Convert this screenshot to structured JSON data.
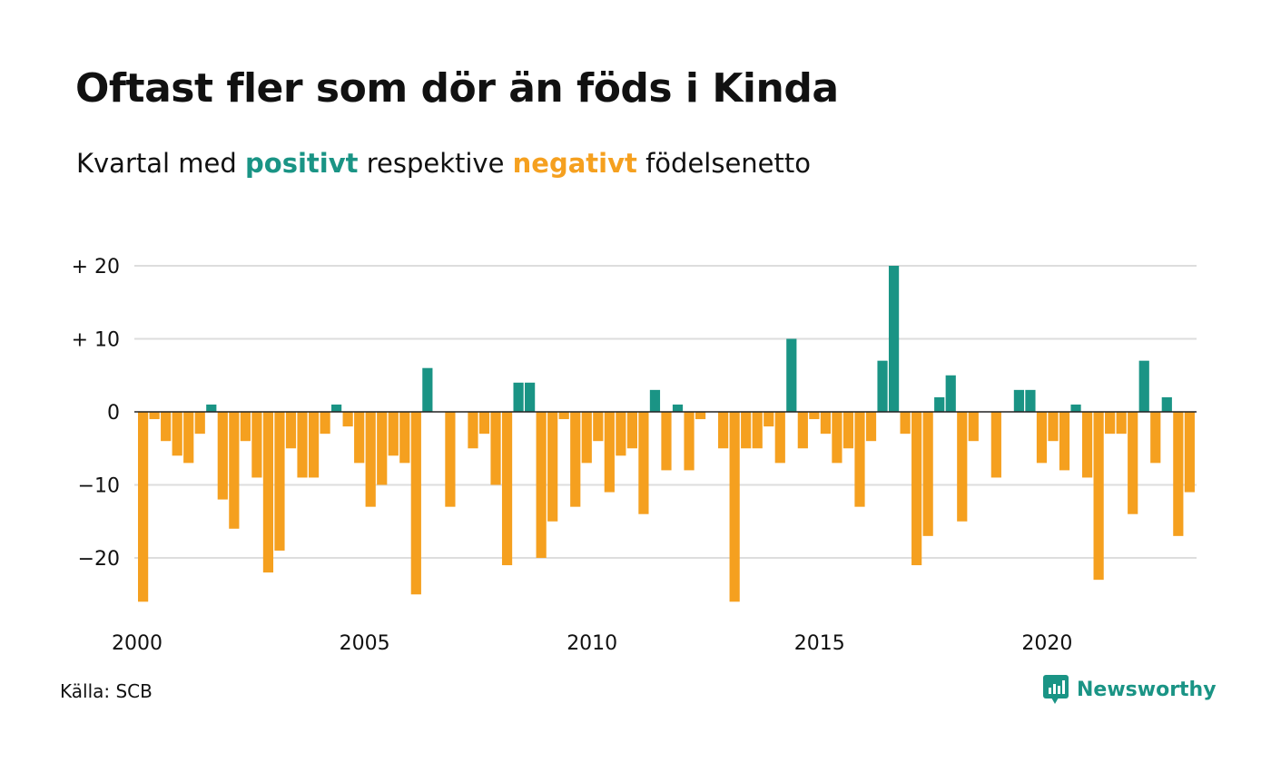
{
  "title": "Oftast fler som dör än föds i Kinda",
  "subtitle": {
    "before": "Kvartal med ",
    "positive": "positivt",
    "middle": " respektive ",
    "negative": "negativt",
    "after": " födelsenetto"
  },
  "colors": {
    "positive": "#1a9485",
    "negative": "#f5a01f",
    "grid": "#dddddd",
    "zero_line": "#222222",
    "text": "#111111"
  },
  "source": "Källa: SCB",
  "brand": {
    "name": "Newsworthy",
    "icon": "newsworthy-logo-icon"
  },
  "chart_data": {
    "type": "bar",
    "title": "Oftast fler som dör än föds i Kinda",
    "subtitle": "Kvartal med positivt respektive negativt födelsenetto",
    "x_start": "2000-Q1",
    "frequency": "quarterly",
    "values": [
      -26,
      -1,
      -4,
      -6,
      -7,
      -3,
      1,
      -12,
      -16,
      -4,
      -9,
      -22,
      -19,
      -5,
      -9,
      -9,
      -3,
      1,
      -2,
      -7,
      -13,
      -10,
      -6,
      -7,
      -25,
      6,
      0,
      -13,
      0,
      -5,
      -3,
      -10,
      -21,
      4,
      4,
      -20,
      -15,
      -1,
      -13,
      -7,
      -4,
      -11,
      -6,
      -5,
      -14,
      3,
      -8,
      1,
      -8,
      -1,
      0,
      -5,
      -26,
      -5,
      -5,
      -2,
      -7,
      10,
      -5,
      -1,
      -3,
      -7,
      -5,
      -13,
      -4,
      7,
      20,
      -3,
      -21,
      -17,
      2,
      5,
      -15,
      -4,
      0,
      -9,
      0,
      3,
      3,
      -7,
      -4,
      -8,
      1,
      -9,
      -23,
      -3,
      -3,
      -14,
      7,
      -7,
      2,
      -17,
      -11
    ],
    "x_ticks": [
      "2000",
      "2005",
      "2010",
      "2015",
      "2020"
    ],
    "y_ticks": [
      "+ 20",
      "+ 10",
      "0",
      "−10",
      "−20"
    ],
    "y_tick_values": [
      20,
      10,
      0,
      -10,
      -20
    ],
    "ylim": [
      -27,
      21
    ],
    "grid": true,
    "legend": "in subtitle"
  }
}
